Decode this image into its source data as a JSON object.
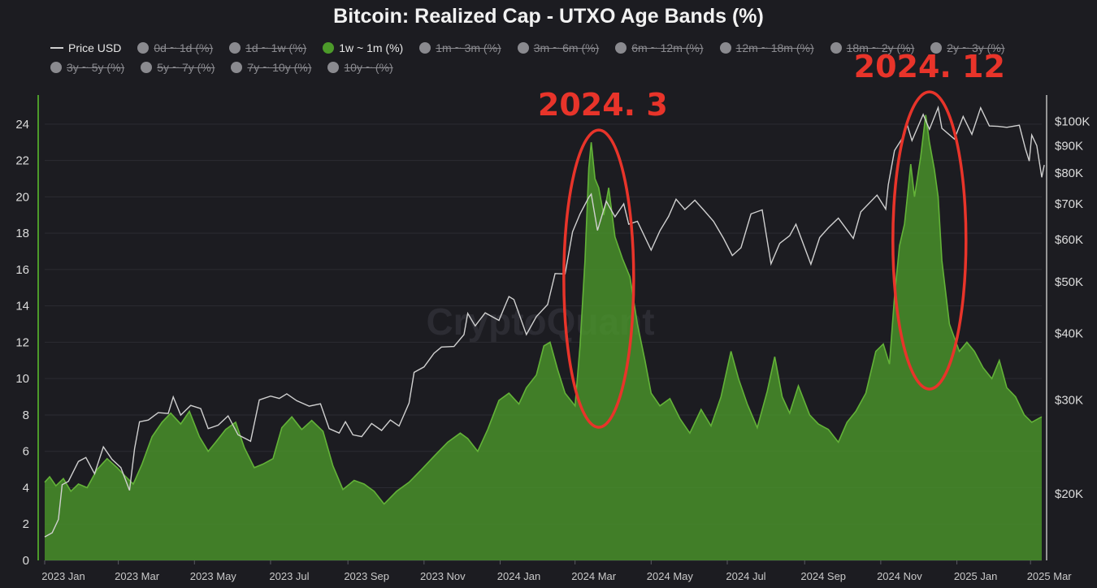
{
  "chart_data": {
    "type": "area",
    "title": "Bitcoin: Realized Cap - UTXO Age Bands (%)",
    "watermark": "CryptoQuant",
    "legend": [
      {
        "label": "Price USD",
        "active": true,
        "kind": "line",
        "color": "#d0d0d0"
      },
      {
        "label": "0d ~ 1d (%)",
        "active": false,
        "kind": "dot",
        "color": "#8a8a8f"
      },
      {
        "label": "1d ~ 1w (%)",
        "active": false,
        "kind": "dot",
        "color": "#8a8a8f"
      },
      {
        "label": "1w ~ 1m (%)",
        "active": true,
        "kind": "dot",
        "color": "#4c9a2a"
      },
      {
        "label": "1m ~ 3m (%)",
        "active": false,
        "kind": "dot",
        "color": "#8a8a8f"
      },
      {
        "label": "3m ~ 6m (%)",
        "active": false,
        "kind": "dot",
        "color": "#8a8a8f"
      },
      {
        "label": "6m ~ 12m (%)",
        "active": false,
        "kind": "dot",
        "color": "#8a8a8f"
      },
      {
        "label": "12m ~ 18m (%)",
        "active": false,
        "kind": "dot",
        "color": "#8a8a8f"
      },
      {
        "label": "18m ~ 2y (%)",
        "active": false,
        "kind": "dot",
        "color": "#8a8a8f"
      },
      {
        "label": "2y ~ 3y (%)",
        "active": false,
        "kind": "dot",
        "color": "#8a8a8f"
      },
      {
        "label": "3y ~ 5y (%)",
        "active": false,
        "kind": "dot",
        "color": "#8a8a8f"
      },
      {
        "label": "5y ~ 7y (%)",
        "active": false,
        "kind": "dot",
        "color": "#8a8a8f"
      },
      {
        "label": "7y ~ 10y (%)",
        "active": false,
        "kind": "dot",
        "color": "#8a8a8f"
      },
      {
        "label": "10y ~ (%)",
        "active": false,
        "kind": "dot",
        "color": "#8a8a8f"
      }
    ],
    "x_ticks": [
      "2023 Jan",
      "2023 Mar",
      "2023 May",
      "2023 Jul",
      "2023 Sep",
      "2023 Nov",
      "2024 Jan",
      "2024 Mar",
      "2024 May",
      "2024 Jul",
      "2024 Sep",
      "2024 Nov",
      "2025 Jan",
      "2025 Mar"
    ],
    "y_left": {
      "ticks": [
        0,
        2,
        4,
        6,
        8,
        10,
        12,
        14,
        16,
        18,
        20,
        22,
        24
      ],
      "range": [
        0,
        25.6
      ]
    },
    "y_right": {
      "scale": "log",
      "ticks": [
        20000,
        30000,
        40000,
        50000,
        60000,
        70000,
        80000,
        90000,
        100000
      ],
      "tick_labels": [
        "$20K",
        "$30K",
        "$40K",
        "$50K",
        "$60K",
        "$70K",
        "$80K",
        "$90K",
        "$100K"
      ],
      "range": [
        15000,
        112000
      ]
    },
    "x_range": [
      "2023-01-01",
      "2025-03-10"
    ],
    "series": [
      {
        "name": "1w ~ 1m (%)",
        "axis": "left",
        "style": "area",
        "color": "#4c9a2a",
        "points": [
          [
            "2023-01-01",
            4.3
          ],
          [
            "2023-01-05",
            4.6
          ],
          [
            "2023-01-10",
            4.1
          ],
          [
            "2023-01-16",
            4.5
          ],
          [
            "2023-01-22",
            3.8
          ],
          [
            "2023-01-28",
            4.2
          ],
          [
            "2023-02-04",
            4.0
          ],
          [
            "2023-02-12",
            5.0
          ],
          [
            "2023-02-20",
            5.6
          ],
          [
            "2023-02-28",
            5.1
          ],
          [
            "2023-03-07",
            4.6
          ],
          [
            "2023-03-13",
            4.2
          ],
          [
            "2023-03-20",
            5.3
          ],
          [
            "2023-03-28",
            6.8
          ],
          [
            "2023-04-05",
            7.6
          ],
          [
            "2023-04-12",
            8.1
          ],
          [
            "2023-04-20",
            7.5
          ],
          [
            "2023-04-27",
            8.2
          ],
          [
            "2023-05-05",
            6.8
          ],
          [
            "2023-05-12",
            6.0
          ],
          [
            "2023-05-18",
            6.5
          ],
          [
            "2023-05-26",
            7.2
          ],
          [
            "2023-06-03",
            7.6
          ],
          [
            "2023-06-10",
            6.2
          ],
          [
            "2023-06-18",
            5.1
          ],
          [
            "2023-06-25",
            5.3
          ],
          [
            "2023-07-03",
            5.6
          ],
          [
            "2023-07-10",
            7.3
          ],
          [
            "2023-07-18",
            7.9
          ],
          [
            "2023-07-26",
            7.2
          ],
          [
            "2023-08-03",
            7.7
          ],
          [
            "2023-08-12",
            7.1
          ],
          [
            "2023-08-20",
            5.2
          ],
          [
            "2023-08-28",
            3.9
          ],
          [
            "2023-09-06",
            4.4
          ],
          [
            "2023-09-14",
            4.2
          ],
          [
            "2023-09-22",
            3.8
          ],
          [
            "2023-09-30",
            3.1
          ],
          [
            "2023-10-10",
            3.8
          ],
          [
            "2023-10-20",
            4.3
          ],
          [
            "2023-10-30",
            5.0
          ],
          [
            "2023-11-10",
            5.8
          ],
          [
            "2023-11-20",
            6.5
          ],
          [
            "2023-11-30",
            7.0
          ],
          [
            "2023-12-06",
            6.7
          ],
          [
            "2023-12-14",
            6.0
          ],
          [
            "2023-12-22",
            7.2
          ],
          [
            "2023-12-31",
            8.8
          ],
          [
            "2024-01-08",
            9.2
          ],
          [
            "2024-01-16",
            8.6
          ],
          [
            "2024-01-22",
            9.5
          ],
          [
            "2024-01-30",
            10.2
          ],
          [
            "2024-02-05",
            11.8
          ],
          [
            "2024-02-10",
            12.0
          ],
          [
            "2024-02-16",
            10.5
          ],
          [
            "2024-02-22",
            9.2
          ],
          [
            "2024-03-01",
            8.5
          ],
          [
            "2024-03-05",
            11.8
          ],
          [
            "2024-03-09",
            16.5
          ],
          [
            "2024-03-12",
            21.6
          ],
          [
            "2024-03-14",
            23.0
          ],
          [
            "2024-03-17",
            21.0
          ],
          [
            "2024-03-20",
            20.5
          ],
          [
            "2024-03-24",
            19.0
          ],
          [
            "2024-03-28",
            20.5
          ],
          [
            "2024-04-02",
            17.8
          ],
          [
            "2024-04-08",
            16.6
          ],
          [
            "2024-04-14",
            15.6
          ],
          [
            "2024-04-20",
            13.0
          ],
          [
            "2024-04-26",
            11.0
          ],
          [
            "2024-05-01",
            9.2
          ],
          [
            "2024-05-08",
            8.5
          ],
          [
            "2024-05-16",
            8.9
          ],
          [
            "2024-05-24",
            7.8
          ],
          [
            "2024-06-01",
            7.0
          ],
          [
            "2024-06-10",
            8.3
          ],
          [
            "2024-06-18",
            7.4
          ],
          [
            "2024-06-26",
            9.0
          ],
          [
            "2024-07-04",
            11.5
          ],
          [
            "2024-07-10",
            10.0
          ],
          [
            "2024-07-17",
            8.6
          ],
          [
            "2024-07-25",
            7.3
          ],
          [
            "2024-08-02",
            9.3
          ],
          [
            "2024-08-08",
            11.2
          ],
          [
            "2024-08-14",
            9.0
          ],
          [
            "2024-08-20",
            8.1
          ],
          [
            "2024-08-27",
            9.6
          ],
          [
            "2024-09-05",
            8.0
          ],
          [
            "2024-09-12",
            7.5
          ],
          [
            "2024-09-20",
            7.2
          ],
          [
            "2024-09-28",
            6.5
          ],
          [
            "2024-10-05",
            7.6
          ],
          [
            "2024-10-12",
            8.2
          ],
          [
            "2024-10-20",
            9.2
          ],
          [
            "2024-10-28",
            11.5
          ],
          [
            "2024-11-03",
            11.9
          ],
          [
            "2024-11-08",
            10.8
          ],
          [
            "2024-11-12",
            14.5
          ],
          [
            "2024-11-16",
            17.3
          ],
          [
            "2024-11-20",
            18.5
          ],
          [
            "2024-11-25",
            21.8
          ],
          [
            "2024-11-28",
            20.0
          ],
          [
            "2024-12-03",
            22.2
          ],
          [
            "2024-12-07",
            24.5
          ],
          [
            "2024-12-10",
            23.0
          ],
          [
            "2024-12-14",
            21.5
          ],
          [
            "2024-12-17",
            20.0
          ],
          [
            "2024-12-20",
            16.5
          ],
          [
            "2024-12-26",
            13.0
          ],
          [
            "2025-01-03",
            11.5
          ],
          [
            "2025-01-09",
            12.0
          ],
          [
            "2025-01-15",
            11.5
          ],
          [
            "2025-01-22",
            10.6
          ],
          [
            "2025-01-29",
            10.0
          ],
          [
            "2025-02-04",
            11.0
          ],
          [
            "2025-02-10",
            9.5
          ],
          [
            "2025-02-17",
            9.0
          ],
          [
            "2025-02-24",
            8.0
          ],
          [
            "2025-03-02",
            7.6
          ],
          [
            "2025-03-10",
            7.9
          ]
        ]
      },
      {
        "name": "Price USD",
        "axis": "right",
        "style": "line",
        "color": "#d0d0d0",
        "points": [
          [
            "2023-01-01",
            16600
          ],
          [
            "2023-01-07",
            16900
          ],
          [
            "2023-01-12",
            17900
          ],
          [
            "2023-01-15",
            20800
          ],
          [
            "2023-01-20",
            21100
          ],
          [
            "2023-01-28",
            23000
          ],
          [
            "2023-02-03",
            23400
          ],
          [
            "2023-02-10",
            21800
          ],
          [
            "2023-02-17",
            24500
          ],
          [
            "2023-02-24",
            23200
          ],
          [
            "2023-03-03",
            22400
          ],
          [
            "2023-03-10",
            20300
          ],
          [
            "2023-03-14",
            24300
          ],
          [
            "2023-03-18",
            27300
          ],
          [
            "2023-03-25",
            27500
          ],
          [
            "2023-04-02",
            28400
          ],
          [
            "2023-04-10",
            28300
          ],
          [
            "2023-04-14",
            30400
          ],
          [
            "2023-04-20",
            28100
          ],
          [
            "2023-04-28",
            29300
          ],
          [
            "2023-05-06",
            28900
          ],
          [
            "2023-05-12",
            26500
          ],
          [
            "2023-05-20",
            26900
          ],
          [
            "2023-05-28",
            28000
          ],
          [
            "2023-06-05",
            25800
          ],
          [
            "2023-06-15",
            25100
          ],
          [
            "2023-06-22",
            30000
          ],
          [
            "2023-07-01",
            30500
          ],
          [
            "2023-07-08",
            30200
          ],
          [
            "2023-07-14",
            30800
          ],
          [
            "2023-07-22",
            29900
          ],
          [
            "2023-08-01",
            29200
          ],
          [
            "2023-08-10",
            29500
          ],
          [
            "2023-08-17",
            26500
          ],
          [
            "2023-08-25",
            26000
          ],
          [
            "2023-08-30",
            27300
          ],
          [
            "2023-09-05",
            25800
          ],
          [
            "2023-09-12",
            25600
          ],
          [
            "2023-09-20",
            27100
          ],
          [
            "2023-09-28",
            26300
          ],
          [
            "2023-10-05",
            27500
          ],
          [
            "2023-10-12",
            26800
          ],
          [
            "2023-10-20",
            29600
          ],
          [
            "2023-10-24",
            33800
          ],
          [
            "2023-11-01",
            34600
          ],
          [
            "2023-11-09",
            36700
          ],
          [
            "2023-11-15",
            37700
          ],
          [
            "2023-11-25",
            37800
          ],
          [
            "2023-12-03",
            39800
          ],
          [
            "2023-12-06",
            43600
          ],
          [
            "2023-12-12",
            41300
          ],
          [
            "2023-12-20",
            43700
          ],
          [
            "2023-12-31",
            42300
          ],
          [
            "2024-01-08",
            46900
          ],
          [
            "2024-01-12",
            46300
          ],
          [
            "2024-01-22",
            39800
          ],
          [
            "2024-01-30",
            43000
          ],
          [
            "2024-02-08",
            45300
          ],
          [
            "2024-02-14",
            51800
          ],
          [
            "2024-02-22",
            51700
          ],
          [
            "2024-02-28",
            62000
          ],
          [
            "2024-03-05",
            67000
          ],
          [
            "2024-03-12",
            72000
          ],
          [
            "2024-03-14",
            73000
          ],
          [
            "2024-03-19",
            62400
          ],
          [
            "2024-03-26",
            70800
          ],
          [
            "2024-04-02",
            66200
          ],
          [
            "2024-04-09",
            70000
          ],
          [
            "2024-04-13",
            64100
          ],
          [
            "2024-04-20",
            64900
          ],
          [
            "2024-05-01",
            57300
          ],
          [
            "2024-05-08",
            62300
          ],
          [
            "2024-05-15",
            66300
          ],
          [
            "2024-05-21",
            71400
          ],
          [
            "2024-05-28",
            68300
          ],
          [
            "2024-06-05",
            71100
          ],
          [
            "2024-06-12",
            68200
          ],
          [
            "2024-06-20",
            64900
          ],
          [
            "2024-06-28",
            60300
          ],
          [
            "2024-07-05",
            56000
          ],
          [
            "2024-07-12",
            57900
          ],
          [
            "2024-07-20",
            67000
          ],
          [
            "2024-07-29",
            68200
          ],
          [
            "2024-08-05",
            54000
          ],
          [
            "2024-08-12",
            59000
          ],
          [
            "2024-08-20",
            61000
          ],
          [
            "2024-08-25",
            64100
          ],
          [
            "2024-09-06",
            53900
          ],
          [
            "2024-09-13",
            60500
          ],
          [
            "2024-09-20",
            63100
          ],
          [
            "2024-09-28",
            65800
          ],
          [
            "2024-10-10",
            60300
          ],
          [
            "2024-10-16",
            67600
          ],
          [
            "2024-10-29",
            72700
          ],
          [
            "2024-11-05",
            68400
          ],
          [
            "2024-11-07",
            75900
          ],
          [
            "2024-11-12",
            88100
          ],
          [
            "2024-11-20",
            94300
          ],
          [
            "2024-11-22",
            98900
          ],
          [
            "2024-11-26",
            92000
          ],
          [
            "2024-12-05",
            103000
          ],
          [
            "2024-12-10",
            96600
          ],
          [
            "2024-12-17",
            106100
          ],
          [
            "2024-12-20",
            97000
          ],
          [
            "2024-12-30",
            92600
          ],
          [
            "2025-01-06",
            102100
          ],
          [
            "2025-01-13",
            94500
          ],
          [
            "2025-01-20",
            106000
          ],
          [
            "2025-01-27",
            98000
          ],
          [
            "2025-02-03",
            97800
          ],
          [
            "2025-02-10",
            97400
          ],
          [
            "2025-02-20",
            98300
          ],
          [
            "2025-02-25",
            88700
          ],
          [
            "2025-02-28",
            84200
          ],
          [
            "2025-03-02",
            94200
          ],
          [
            "2025-03-06",
            90000
          ],
          [
            "2025-03-10",
            78500
          ],
          [
            "2025-03-12",
            82800
          ]
        ]
      }
    ],
    "annotations": [
      {
        "text": "2024. 3",
        "type": "ellipse",
        "x": "2024-03-20",
        "y": 15.5
      },
      {
        "text": "2024. 12",
        "type": "ellipse",
        "x": "2024-12-10",
        "y": 17.6
      }
    ]
  }
}
